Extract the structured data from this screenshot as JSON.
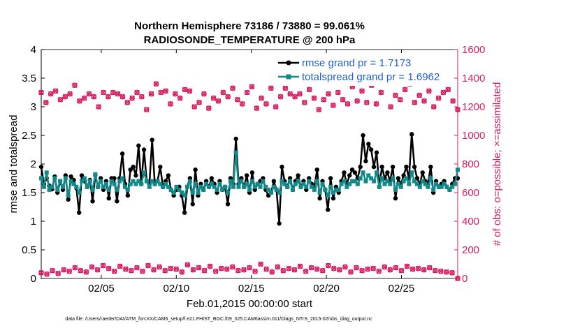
{
  "chart_data": {
    "type": "line",
    "title_line1": "Northern Hemisphere 73186 / 73880 = 99.061%",
    "title_line2": "RADIOSONDE_TEMPERATURE @ 200 hPa",
    "xlabel": "Feb.01,2015 00:00:00 start",
    "ylabel_left": "rmse and totalspread",
    "ylabel_right": "# of obs: o=possible; ×=assimilated",
    "footer": "data file: /Users/raeder/DAI/ATM_forcXX/CAM6_setup/f.e21.FHIST_BGC.f09_025.CAM6assim.011/Diags_NTrS_2015-02/obs_diag_output.nc",
    "x_range_days": [
      1,
      28.75
    ],
    "ylim_left": [
      0,
      4
    ],
    "ylim_right": [
      0,
      1600
    ],
    "yticks_left": [
      "0",
      "0.5",
      "1",
      "1.5",
      "2",
      "2.5",
      "3",
      "3.5",
      "4"
    ],
    "yticks_left_values": [
      0,
      0.5,
      1,
      1.5,
      2,
      2.5,
      3,
      3.5,
      4
    ],
    "yticks_right": [
      "0",
      "200",
      "400",
      "600",
      "800",
      "1000",
      "1200",
      "1400",
      "1600"
    ],
    "yticks_right_values": [
      0,
      200,
      400,
      600,
      800,
      1000,
      1200,
      1400,
      1600
    ],
    "xticks": [
      {
        "day": 5,
        "label": "02/05"
      },
      {
        "day": 10,
        "label": "02/10"
      },
      {
        "day": 15,
        "label": "02/15"
      },
      {
        "day": 20,
        "label": "02/20"
      },
      {
        "day": 25,
        "label": "02/25"
      }
    ],
    "colors": {
      "rmse": "#000000",
      "spread": "#138a8a",
      "obs": "#d81b60",
      "legend_text": "#1f5fd6"
    },
    "series": [
      {
        "name": "rmse grand pr = 1.7173",
        "values": [
          1.95,
          1.65,
          1.75,
          1.62,
          1.56,
          1.78,
          1.5,
          1.7,
          1.55,
          1.8,
          1.38,
          1.78,
          1.72,
          1.58,
          1.15,
          1.8,
          1.7,
          1.6,
          1.72,
          1.35,
          1.8,
          1.6,
          1.75,
          1.55,
          1.7,
          1.4,
          1.75,
          1.75,
          1.35,
          1.75,
          2.18,
          1.65,
          1.45,
          1.9,
          1.95,
          1.8,
          2.32,
          1.65,
          2.25,
          1.7,
          1.65,
          2.42,
          1.65,
          1.7,
          1.95,
          1.6,
          1.7,
          1.8,
          1.55,
          1.45,
          1.55,
          1.6,
          1.45,
          1.15,
          1.6,
          1.75,
          1.3,
          1.9,
          1.45,
          1.65,
          1.55,
          1.7,
          1.6,
          1.75,
          1.65,
          1.5,
          1.7,
          1.55,
          1.6,
          1.3,
          1.75,
          1.65,
          2.44,
          1.65,
          1.75,
          1.6,
          1.8,
          1.5,
          1.85,
          1.55,
          1.65,
          1.7,
          1.75,
          1.55,
          1.45,
          1.5,
          1.7,
          1.55,
          0.96,
          1.95,
          1.7,
          1.6,
          1.75,
          1.55,
          1.7,
          1.8,
          1.6,
          1.7,
          1.55,
          1.75,
          1.65,
          1.6,
          1.9,
          1.4,
          1.7,
          1.55,
          1.2,
          1.75,
          1.4,
          1.6,
          1.5,
          1.7,
          1.85,
          1.65,
          1.8,
          1.9,
          1.85,
          1.75,
          1.95,
          2.5,
          2.05,
          2.35,
          2.25,
          1.95,
          2.2,
          1.6,
          1.95,
          1.75,
          1.85,
          1.7,
          1.95,
          1.4,
          1.75,
          1.65,
          1.8,
          1.95,
          1.75,
          2.52,
          1.95,
          1.75,
          1.65,
          1.85,
          1.7,
          1.65,
          1.95,
          1.5,
          1.7,
          1.6,
          1.65,
          1.7,
          1.6,
          1.55,
          1.65,
          1.75,
          1.75
        ]
      },
      {
        "name": "totalspread grand pr = 1.6962",
        "values": [
          1.75,
          1.6,
          1.85,
          1.55,
          1.6,
          1.75,
          1.55,
          1.7,
          1.6,
          1.75,
          1.45,
          1.7,
          1.65,
          1.6,
          1.5,
          1.7,
          1.75,
          1.6,
          1.7,
          1.55,
          1.82,
          1.6,
          1.7,
          1.6,
          1.65,
          1.55,
          1.7,
          1.65,
          1.55,
          1.7,
          1.75,
          1.6,
          1.55,
          1.65,
          1.7,
          1.65,
          1.7,
          1.65,
          1.85,
          1.7,
          1.6,
          1.7,
          1.65,
          1.7,
          1.65,
          1.6,
          1.65,
          1.6,
          1.55,
          1.5,
          1.6,
          1.55,
          1.5,
          1.45,
          1.6,
          1.7,
          1.5,
          1.65,
          1.5,
          1.6,
          1.55,
          1.65,
          1.6,
          1.65,
          1.6,
          1.55,
          1.65,
          1.55,
          1.6,
          1.5,
          1.7,
          1.6,
          2.2,
          1.6,
          1.7,
          1.6,
          1.65,
          1.55,
          1.7,
          1.6,
          1.65,
          1.6,
          1.7,
          1.6,
          1.55,
          1.5,
          1.6,
          1.55,
          1.5,
          1.7,
          1.65,
          1.6,
          1.7,
          1.55,
          1.65,
          1.7,
          1.6,
          1.65,
          1.6,
          1.7,
          1.6,
          1.55,
          1.7,
          1.5,
          1.65,
          1.55,
          1.45,
          1.6,
          1.5,
          1.55,
          1.55,
          1.65,
          1.7,
          1.6,
          1.65,
          1.7,
          1.7,
          1.65,
          1.75,
          1.85,
          1.7,
          1.8,
          1.75,
          1.7,
          1.85,
          1.6,
          1.75,
          1.65,
          1.7,
          1.65,
          1.75,
          1.55,
          1.65,
          1.6,
          1.7,
          1.75,
          1.65,
          1.85,
          1.7,
          1.65,
          1.6,
          1.7,
          1.65,
          1.6,
          1.75,
          1.55,
          1.65,
          1.6,
          1.6,
          1.65,
          1.6,
          1.55,
          1.6,
          1.65,
          1.9
        ]
      },
      {
        "name": "obs_possible_upper",
        "values": [
          1300,
          1230,
          1290,
          1310,
          1250,
          1270,
          1290,
          1350,
          1240,
          1260,
          1290,
          1270,
          1200,
          1300,
          1270,
          1300,
          1290,
          1270,
          1230,
          1260,
          1300,
          1270,
          1180,
          1290,
          1360,
          1300,
          1310,
          1220,
          1290,
          1260,
          1320,
          1310,
          1200,
          1230,
          1290,
          1190,
          1260,
          1240,
          1300,
          1270,
          1330,
          1250,
          1220,
          1300,
          1340,
          1190,
          1260,
          1220,
          1330,
          1200,
          1270,
          1330,
          1290,
          1270,
          1290,
          1230,
          1320,
          1260,
          1180,
          1250,
          1290,
          1210,
          1300,
          1250,
          1220,
          1340,
          1240,
          1310,
          1230,
          1350,
          1220,
          1300,
          1380,
          1200,
          1280,
          1250,
          1320,
          1360,
          1230,
          1280,
          1240,
          1310,
          1200,
          1260,
          1300,
          1320,
          1240,
          1180
        ]
      },
      {
        "name": "obs_possible_lower",
        "values": [
          40,
          30,
          55,
          35,
          60,
          50,
          75,
          55,
          45,
          80,
          60,
          90,
          70,
          50,
          85,
          65,
          55,
          75,
          50,
          90,
          60,
          80,
          55,
          70,
          65,
          45,
          95,
          60,
          75,
          55,
          85,
          50,
          70,
          65,
          80,
          55,
          60,
          75,
          50,
          100,
          65,
          45,
          80,
          55,
          70,
          60,
          85,
          50,
          75,
          65,
          55,
          90,
          70,
          60,
          80,
          45,
          75,
          55,
          65,
          70,
          50,
          80,
          60,
          75,
          55,
          85,
          65,
          70,
          60,
          75,
          55,
          50,
          45,
          40,
          0
        ]
      }
    ]
  }
}
